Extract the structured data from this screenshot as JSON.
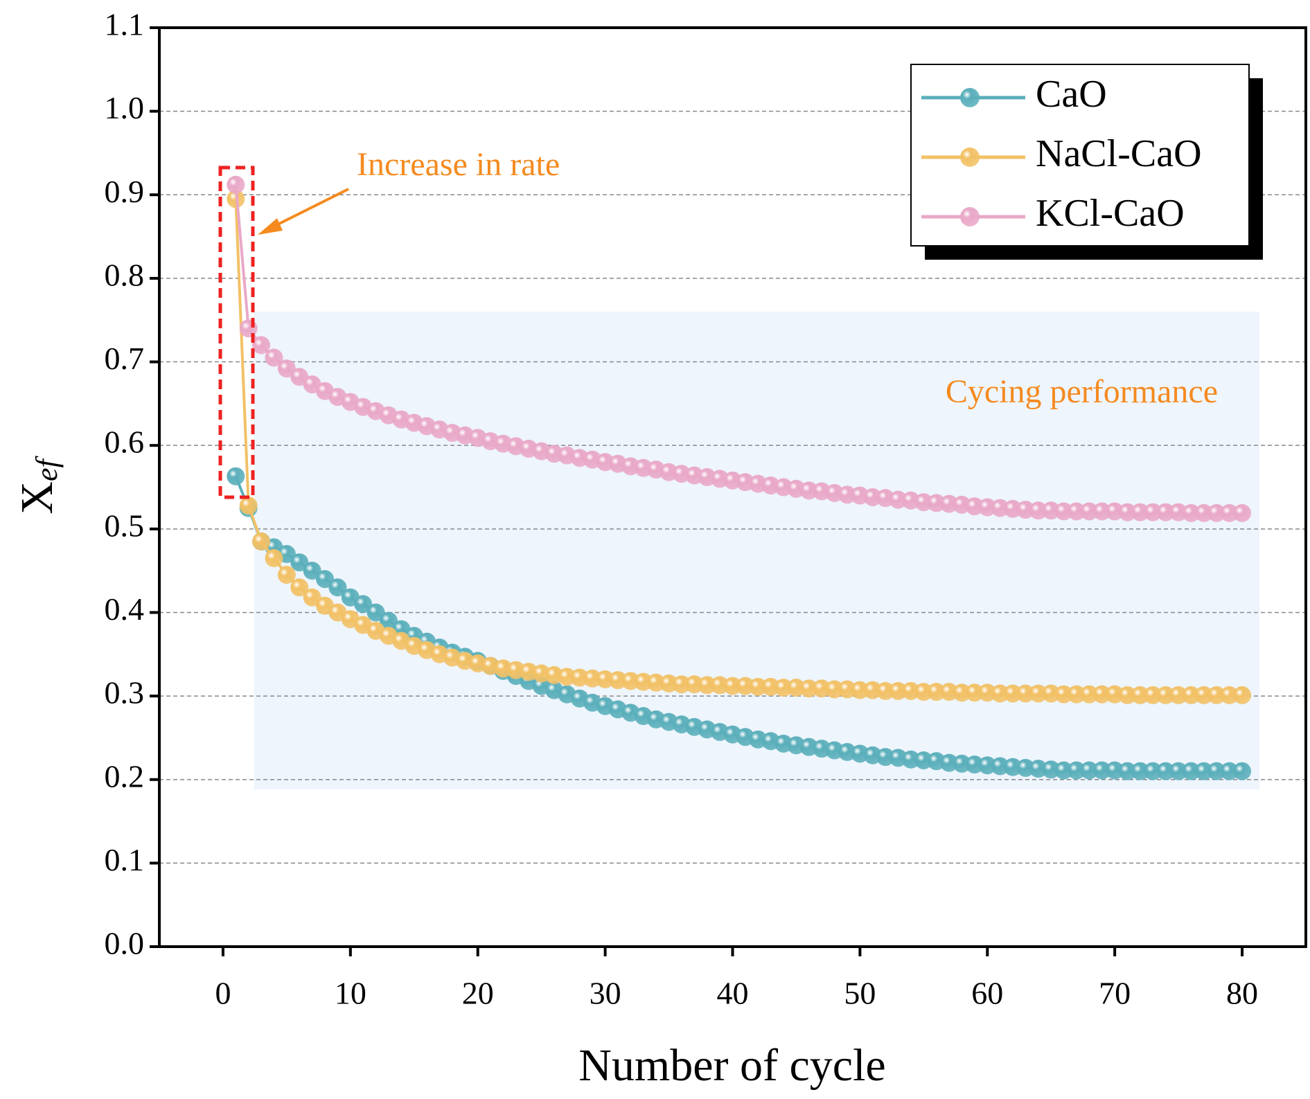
{
  "chart_data": {
    "type": "line",
    "x_label": "Number of cycle",
    "y_label": "X",
    "y_label_sub": "ef",
    "annotations": [
      "Increase in rate",
      "Cycing performance"
    ],
    "xlim": [
      -5,
      85
    ],
    "xticks": [
      0,
      10,
      20,
      30,
      40,
      50,
      60,
      70,
      80
    ],
    "ylim": [
      0,
      1.1
    ],
    "yticks": [
      {
        "value": 0,
        "label": "0.0"
      },
      0.1,
      0.2,
      0.3,
      0.4,
      0.5,
      0.6,
      0.7,
      0.8,
      0.9,
      {
        "value": 1,
        "label": "1.0"
      },
      1.1
    ],
    "grid": true,
    "legend": "upper right",
    "x": [
      1,
      2,
      3,
      4,
      5,
      6,
      7,
      8,
      9,
      10,
      11,
      12,
      13,
      14,
      15,
      16,
      17,
      18,
      19,
      20,
      21,
      22,
      23,
      24,
      25,
      26,
      27,
      28,
      29,
      30,
      31,
      32,
      33,
      34,
      35,
      36,
      37,
      38,
      39,
      40,
      41,
      42,
      43,
      44,
      45,
      46,
      47,
      48,
      49,
      50,
      51,
      52,
      53,
      54,
      55,
      56,
      57,
      58,
      59,
      60,
      61,
      62,
      63,
      64,
      65,
      66,
      67,
      68,
      69,
      70,
      71,
      72,
      73,
      74,
      75,
      76,
      77,
      78,
      79,
      80
    ],
    "series": [
      {
        "name": "CaO",
        "color": "#5aafbb",
        "values": [
          0.563,
          0.525,
          0.485,
          0.478,
          0.47,
          0.46,
          0.45,
          0.44,
          0.43,
          0.418,
          0.41,
          0.4,
          0.39,
          0.38,
          0.372,
          0.365,
          0.358,
          0.352,
          0.347,
          0.342,
          0.336,
          0.33,
          0.324,
          0.318,
          0.312,
          0.307,
          0.302,
          0.297,
          0.292,
          0.288,
          0.284,
          0.28,
          0.276,
          0.272,
          0.269,
          0.266,
          0.263,
          0.26,
          0.257,
          0.254,
          0.251,
          0.248,
          0.246,
          0.243,
          0.241,
          0.239,
          0.237,
          0.235,
          0.233,
          0.231,
          0.229,
          0.227,
          0.226,
          0.224,
          0.223,
          0.222,
          0.22,
          0.219,
          0.218,
          0.217,
          0.216,
          0.215,
          0.214,
          0.213,
          0.212,
          0.211,
          0.211,
          0.211,
          0.211,
          0.211,
          0.21,
          0.21,
          0.21,
          0.21,
          0.21,
          0.21,
          0.21,
          0.21,
          0.21,
          0.21
        ]
      },
      {
        "name": "NaCl-CaO",
        "color": "#f2c166",
        "values": [
          0.895,
          0.528,
          0.485,
          0.465,
          0.445,
          0.43,
          0.418,
          0.408,
          0.4,
          0.392,
          0.385,
          0.378,
          0.372,
          0.366,
          0.36,
          0.355,
          0.35,
          0.346,
          0.342,
          0.339,
          0.336,
          0.333,
          0.331,
          0.329,
          0.327,
          0.325,
          0.323,
          0.322,
          0.321,
          0.32,
          0.319,
          0.318,
          0.317,
          0.316,
          0.315,
          0.314,
          0.314,
          0.313,
          0.313,
          0.312,
          0.312,
          0.311,
          0.311,
          0.31,
          0.31,
          0.309,
          0.309,
          0.308,
          0.308,
          0.307,
          0.307,
          0.306,
          0.306,
          0.306,
          0.305,
          0.305,
          0.305,
          0.304,
          0.304,
          0.304,
          0.303,
          0.303,
          0.303,
          0.303,
          0.303,
          0.302,
          0.302,
          0.302,
          0.302,
          0.302,
          0.301,
          0.301,
          0.301,
          0.301,
          0.301,
          0.301,
          0.301,
          0.301,
          0.301,
          0.301
        ]
      },
      {
        "name": "KCl-CaO",
        "color": "#e9a8c8",
        "values": [
          0.912,
          0.74,
          0.72,
          0.705,
          0.692,
          0.682,
          0.673,
          0.665,
          0.658,
          0.652,
          0.646,
          0.641,
          0.636,
          0.631,
          0.627,
          0.623,
          0.619,
          0.615,
          0.612,
          0.609,
          0.605,
          0.602,
          0.599,
          0.596,
          0.593,
          0.59,
          0.588,
          0.585,
          0.583,
          0.58,
          0.578,
          0.575,
          0.573,
          0.571,
          0.568,
          0.566,
          0.564,
          0.562,
          0.56,
          0.558,
          0.556,
          0.554,
          0.552,
          0.55,
          0.548,
          0.546,
          0.545,
          0.543,
          0.541,
          0.54,
          0.538,
          0.537,
          0.535,
          0.534,
          0.532,
          0.531,
          0.53,
          0.529,
          0.527,
          0.526,
          0.525,
          0.524,
          0.523,
          0.522,
          0.522,
          0.521,
          0.521,
          0.521,
          0.521,
          0.521,
          0.52,
          0.52,
          0.52,
          0.52,
          0.52,
          0.519,
          0.519,
          0.519,
          0.519,
          0.519
        ]
      }
    ]
  }
}
